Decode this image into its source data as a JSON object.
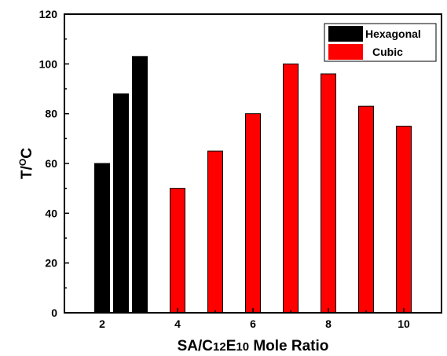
{
  "chart_data": {
    "type": "bar",
    "xlabel": {
      "prefix": "SA/C",
      "sub1": "12",
      "mid": "E",
      "sub2": "10",
      "suffix": " Mole Ratio"
    },
    "ylabel": {
      "base": "T/",
      "sup": "O",
      "unit": "C"
    },
    "xlim": [
      1,
      11
    ],
    "ylim": [
      0,
      120
    ],
    "xticks": [
      2,
      4,
      6,
      8,
      10
    ],
    "yticks": [
      0,
      20,
      40,
      60,
      80,
      100,
      120
    ],
    "legend_position": "top-right",
    "series": [
      {
        "name": "Hexagonal",
        "color": "#000000",
        "points": [
          {
            "x": 2,
            "y": 60
          },
          {
            "x": 2.5,
            "y": 88
          },
          {
            "x": 3,
            "y": 103
          }
        ]
      },
      {
        "name": "Cubic",
        "color": "#ff0000",
        "points": [
          {
            "x": 4,
            "y": 50
          },
          {
            "x": 5,
            "y": 65
          },
          {
            "x": 6,
            "y": 80
          },
          {
            "x": 7,
            "y": 100
          },
          {
            "x": 8,
            "y": 96
          },
          {
            "x": 9,
            "y": 83
          },
          {
            "x": 10,
            "y": 75
          }
        ]
      }
    ]
  }
}
